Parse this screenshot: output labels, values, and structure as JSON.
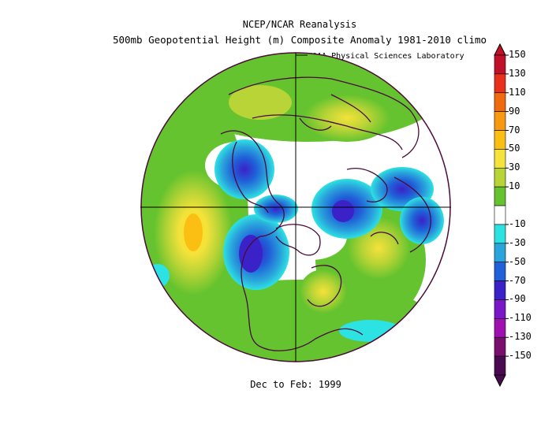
{
  "header": {
    "title": "NCEP/NCAR Reanalysis",
    "subtitle": "500mb Geopotential Height (m) Composite Anomaly 1981-2010 climo",
    "credit": "NOAA Physical Sciences Laboratory"
  },
  "footer": {
    "period": "Dec to Feb: 1999"
  },
  "map": {
    "projection": "north polar stereographic",
    "variable": "500mb geopotential height anomaly",
    "units": "m",
    "features": [
      "coastlines",
      "country-borders",
      "meridian-lines"
    ],
    "anomaly_centers": [
      {
        "region": "North Pacific",
        "sign": "positive",
        "approx_value": 90
      },
      {
        "region": "Western North America / Gulf of Alaska",
        "sign": "negative",
        "approx_value": -80
      },
      {
        "region": "Canadian Arctic",
        "sign": "negative",
        "approx_value": -60
      },
      {
        "region": "Greenland / Iceland",
        "sign": "negative",
        "approx_value": -60
      },
      {
        "region": "Siberia",
        "sign": "negative",
        "approx_value": -50
      },
      {
        "region": "Eurasia",
        "sign": "positive",
        "approx_value": 70
      },
      {
        "region": "North Atlantic",
        "sign": "positive",
        "approx_value": 60
      }
    ]
  },
  "colorbar": {
    "ticks": [
      "150",
      "130",
      "110",
      "90",
      "70",
      "50",
      "30",
      "10",
      "-10",
      "-30",
      "-50",
      "-70",
      "-90",
      "-110",
      "-130",
      "-150"
    ],
    "colors": [
      "#c0102a",
      "#e8301a",
      "#f06a10",
      "#f89a10",
      "#fbbf14",
      "#f5e23a",
      "#b8d436",
      "#64c32e",
      "#ffffff",
      "#2de2e2",
      "#2aa4dc",
      "#2060d8",
      "#3a22c8",
      "#7a18c8",
      "#a010b0",
      "#7a0e6e",
      "#4a0a50"
    ]
  }
}
